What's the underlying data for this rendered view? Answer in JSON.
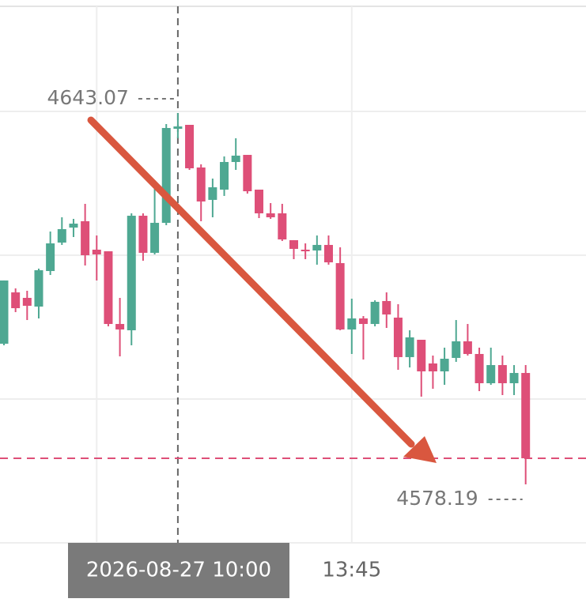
{
  "chart_data": {
    "type": "candlestick",
    "categories": [
      null,
      null,
      null,
      null,
      null,
      null,
      null,
      null,
      null,
      null,
      null,
      null,
      null,
      null,
      null,
      "2026-08-27 10:00",
      null,
      null,
      null,
      null,
      null,
      null,
      null,
      null,
      null,
      null,
      null,
      null,
      null,
      null,
      "13:45",
      null,
      null,
      null,
      null,
      null,
      null,
      null,
      null,
      null,
      null,
      null,
      null,
      null,
      null,
      null
    ],
    "open": [
      4602.76,
      4611.73,
      4610.77,
      4609.25,
      4615.46,
      4620.43,
      4623.05,
      4624.16,
      4619.19,
      4618.91,
      4606.21,
      4605.11,
      4625.12,
      4618.64,
      4623.88,
      4640.31,
      4641.0,
      4633.55,
      4627.89,
      4629.68,
      4634.51,
      4635.75,
      4629.68,
      4625.54,
      4625.54,
      4620.85,
      4619.19,
      4619.05,
      4620.02,
      4616.84,
      4605.25,
      4607.18,
      4606.21,
      4610.22,
      4607.32,
      4600.42,
      4603.45,
      4599.31,
      4597.93,
      4600.28,
      4603.18,
      4600.97,
      4595.86,
      4599.03,
      4595.86,
      4597.65
    ],
    "high": [
      4613.81,
      4612.43,
      4612.01,
      4615.88,
      4622.36,
      4624.85,
      4624.57,
      4627.2,
      4621.67,
      4618.91,
      4610.77,
      4625.54,
      4625.54,
      4631.34,
      4641.14,
      4643.07,
      4641.0,
      4634.1,
      4631.61,
      4635.48,
      4638.65,
      4635.75,
      4629.68,
      4627.33,
      4627.2,
      4620.85,
      4620.29,
      4621.67,
      4621.67,
      4619.6,
      4610.63,
      4607.59,
      4610.35,
      4611.73,
      4609.66,
      4605.11,
      4603.45,
      4600.69,
      4602.07,
      4606.9,
      4606.21,
      4602.07,
      4602.07,
      4600.69,
      4599.03,
      4599.03
    ],
    "low": [
      4602.49,
      4608.28,
      4606.9,
      4607.18,
      4614.77,
      4620.02,
      4621.4,
      4616.43,
      4613.81,
      4605.8,
      4600.55,
      4602.49,
      4617.26,
      4618.36,
      4623.47,
      4638.65,
      4633.13,
      4624.16,
      4624.85,
      4628.58,
      4633.13,
      4628.99,
      4624.71,
      4624.57,
      4620.71,
      4617.53,
      4617.53,
      4616.57,
      4616.57,
      4605.11,
      4600.97,
      4600.0,
      4605.8,
      4605.52,
      4598.21,
      4598.62,
      4593.51,
      4594.89,
      4595.58,
      4599.59,
      4600.69,
      4594.48,
      4595.58,
      4593.79,
      4593.79,
      4578.19
    ],
    "close": [
      4613.81,
      4608.97,
      4609.39,
      4615.6,
      4620.29,
      4622.78,
      4623.74,
      4618.22,
      4618.36,
      4606.21,
      4605.25,
      4625.12,
      4618.64,
      4623.88,
      4640.45,
      4640.72,
      4633.41,
      4627.61,
      4630.09,
      4634.51,
      4635.62,
      4629.4,
      4625.54,
      4624.85,
      4620.98,
      4619.33,
      4618.91,
      4620.02,
      4616.98,
      4605.25,
      4607.18,
      4606.21,
      4610.08,
      4607.87,
      4600.42,
      4603.87,
      4597.93,
      4597.93,
      4600.14,
      4603.18,
      4600.97,
      4595.86,
      4599.03,
      4595.86,
      4597.65,
      4582.75
    ],
    "up_color": "#4ea892",
    "down_color": "#de4f78",
    "ylim": [
      4566.18,
      4662.81
    ],
    "high_marker": 4643.07,
    "low_marker": 4578.19
  }
}
